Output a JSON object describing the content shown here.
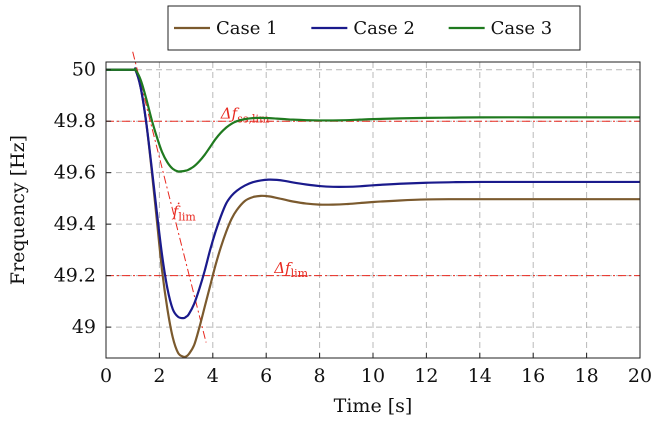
{
  "chart_data": {
    "type": "line",
    "xlabel": "Time [s]",
    "ylabel": "Frequency [Hz]",
    "xlim": [
      0,
      20
    ],
    "ylim": [
      48.88,
      50.03
    ],
    "xticks": [
      0,
      2,
      4,
      6,
      8,
      10,
      12,
      14,
      16,
      18,
      20
    ],
    "yticks": [
      49,
      49.2,
      49.4,
      49.6,
      49.8,
      50
    ],
    "ytick_labels": [
      "49",
      "49.2",
      "49.4",
      "49.6",
      "49.8",
      "50"
    ],
    "grid": true,
    "legend_position": "top-center",
    "series": [
      {
        "name": "Case 1",
        "color": "#7b5a2e",
        "x": [
          0,
          1,
          1.1,
          1.3,
          1.5,
          1.7,
          1.9,
          2.1,
          2.3,
          2.5,
          2.7,
          2.9,
          3.0,
          3.1,
          3.3,
          3.5,
          3.7,
          3.9,
          4.1,
          4.3,
          4.5,
          4.7,
          4.9,
          5.2,
          5.5,
          5.8,
          6.1,
          6.4,
          6.7,
          7.0,
          7.5,
          8.0,
          8.5,
          9.0,
          9.5,
          10,
          11,
          12,
          13,
          14,
          16,
          18,
          20
        ],
        "y": [
          50,
          50,
          50,
          49.93,
          49.8,
          49.62,
          49.42,
          49.22,
          49.07,
          48.96,
          48.9,
          48.885,
          48.886,
          48.895,
          48.93,
          49.0,
          49.08,
          49.16,
          49.24,
          49.31,
          49.37,
          49.42,
          49.455,
          49.49,
          49.505,
          49.51,
          49.508,
          49.502,
          49.495,
          49.488,
          49.48,
          49.476,
          49.476,
          49.478,
          49.482,
          49.486,
          49.492,
          49.496,
          49.497,
          49.497,
          49.497,
          49.497,
          49.497
        ]
      },
      {
        "name": "Case 2",
        "color": "#1a1a8c",
        "x": [
          0,
          1,
          1.1,
          1.3,
          1.5,
          1.7,
          1.9,
          2.1,
          2.3,
          2.5,
          2.7,
          2.9,
          3.0,
          3.1,
          3.3,
          3.5,
          3.7,
          3.9,
          4.1,
          4.3,
          4.5,
          4.7,
          4.9,
          5.2,
          5.5,
          5.8,
          6.1,
          6.4,
          6.7,
          7.0,
          7.5,
          8.0,
          8.5,
          9.0,
          9.5,
          10,
          11,
          12,
          13,
          14,
          16,
          18,
          20
        ],
        "y": [
          50,
          50,
          50,
          49.93,
          49.8,
          49.63,
          49.45,
          49.28,
          49.15,
          49.07,
          49.04,
          49.035,
          49.04,
          49.05,
          49.09,
          49.15,
          49.22,
          49.3,
          49.37,
          49.43,
          49.48,
          49.51,
          49.53,
          49.55,
          49.563,
          49.57,
          49.573,
          49.572,
          49.568,
          49.562,
          49.554,
          49.548,
          49.545,
          49.545,
          49.547,
          49.551,
          49.557,
          49.561,
          49.563,
          49.564,
          49.564,
          49.564,
          49.564
        ]
      },
      {
        "name": "Case 3",
        "color": "#1f7a1f",
        "x": [
          0,
          1,
          1.1,
          1.3,
          1.5,
          1.7,
          1.9,
          2.1,
          2.3,
          2.5,
          2.7,
          2.9,
          3.0,
          3.1,
          3.3,
          3.5,
          3.7,
          3.9,
          4.1,
          4.3,
          4.5,
          4.7,
          4.9,
          5.2,
          5.5,
          5.8,
          6.1,
          6.4,
          6.7,
          7.0,
          7.5,
          8.0,
          8.5,
          9.0,
          9.5,
          10,
          11,
          12,
          13,
          14,
          16,
          18,
          20
        ],
        "y": [
          50,
          50,
          50,
          49.96,
          49.89,
          49.81,
          49.74,
          49.68,
          49.64,
          49.615,
          49.605,
          49.606,
          49.608,
          49.612,
          49.625,
          49.645,
          49.67,
          49.7,
          49.73,
          49.755,
          49.775,
          49.79,
          49.8,
          49.808,
          49.812,
          49.813,
          49.812,
          49.81,
          49.808,
          49.806,
          49.804,
          49.803,
          49.803,
          49.804,
          49.806,
          49.808,
          49.811,
          49.813,
          49.814,
          49.815,
          49.815,
          49.815,
          49.815
        ]
      }
    ],
    "reference_lines": [
      {
        "kind": "horizontal",
        "y": 49.8,
        "color": "#e8281f",
        "label_main": "Δf",
        "label_sub": "ss,lim",
        "label_x": 4.3,
        "label_y": 49.81
      },
      {
        "kind": "horizontal",
        "y": 49.2,
        "color": "#e8281f",
        "label_main": "Δf",
        "label_sub": "lim",
        "label_x": 6.3,
        "label_y": 49.21
      },
      {
        "kind": "slope",
        "x1": 1.0,
        "y1": 50.07,
        "x2": 3.75,
        "y2": 48.94,
        "color": "#e8281f",
        "label_main": "ḟ",
        "label_sub": "lim",
        "label_x": 2.5,
        "label_y": 49.43
      }
    ]
  }
}
